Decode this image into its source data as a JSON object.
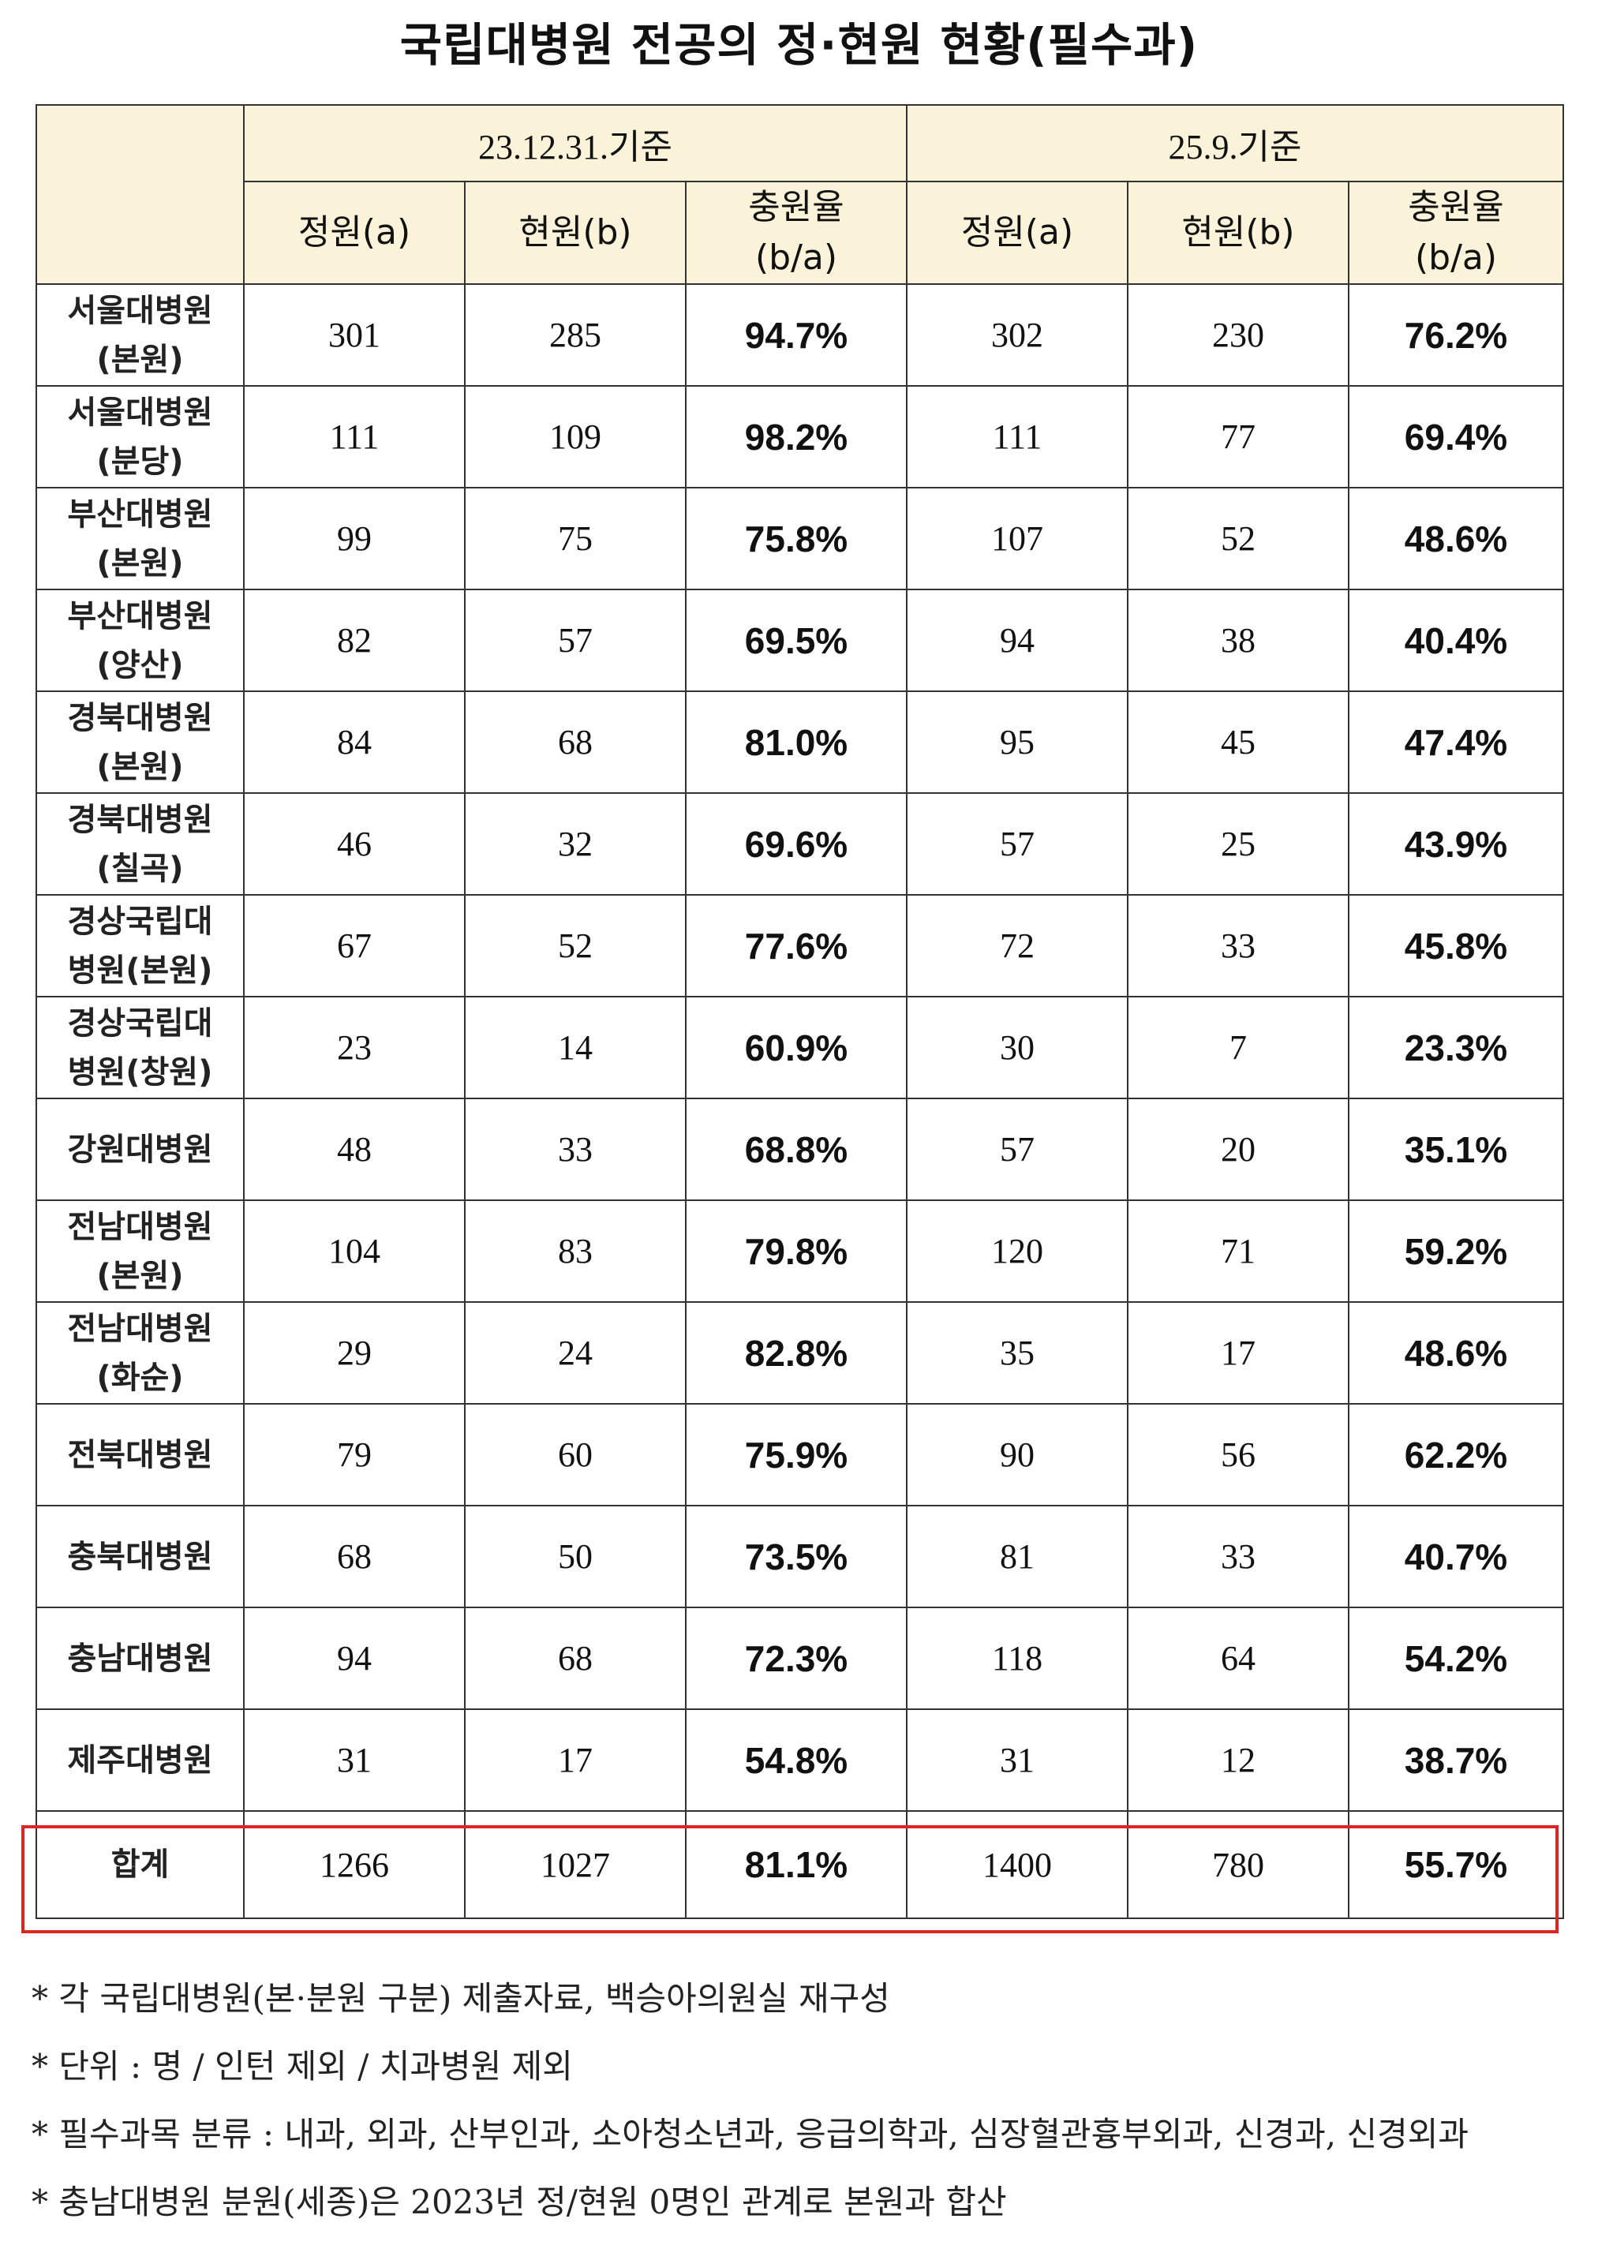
{
  "title": "국립대병원 전공의 정·현원 현황(필수과)",
  "table": {
    "periods": [
      "23.12.31.기준",
      "25.9.기준"
    ],
    "sub_headers": [
      "정원(a)",
      "현원(b)",
      "충원율\n(b/a)"
    ],
    "rows": [
      {
        "name": "서울대병원\n(본원)",
        "values": [
          "301",
          "285",
          "94.7%",
          "302",
          "230",
          "76.2%"
        ]
      },
      {
        "name": "서울대병원\n(분당)",
        "values": [
          "111",
          "109",
          "98.2%",
          "111",
          "77",
          "69.4%"
        ]
      },
      {
        "name": "부산대병원\n(본원)",
        "values": [
          "99",
          "75",
          "75.8%",
          "107",
          "52",
          "48.6%"
        ]
      },
      {
        "name": "부산대병원\n(양산)",
        "values": [
          "82",
          "57",
          "69.5%",
          "94",
          "38",
          "40.4%"
        ]
      },
      {
        "name": "경북대병원\n(본원)",
        "values": [
          "84",
          "68",
          "81.0%",
          "95",
          "45",
          "47.4%"
        ]
      },
      {
        "name": "경북대병원\n(칠곡)",
        "values": [
          "46",
          "32",
          "69.6%",
          "57",
          "25",
          "43.9%"
        ]
      },
      {
        "name": "경상국립대\n병원(본원)",
        "values": [
          "67",
          "52",
          "77.6%",
          "72",
          "33",
          "45.8%"
        ]
      },
      {
        "name": "경상국립대\n병원(창원)",
        "values": [
          "23",
          "14",
          "60.9%",
          "30",
          "7",
          "23.3%"
        ]
      },
      {
        "name": "강원대병원",
        "values": [
          "48",
          "33",
          "68.8%",
          "57",
          "20",
          "35.1%"
        ]
      },
      {
        "name": "전남대병원\n(본원)",
        "values": [
          "104",
          "83",
          "79.8%",
          "120",
          "71",
          "59.2%"
        ]
      },
      {
        "name": "전남대병원\n(화순)",
        "values": [
          "29",
          "24",
          "82.8%",
          "35",
          "17",
          "48.6%"
        ]
      },
      {
        "name": "전북대병원",
        "values": [
          "79",
          "60",
          "75.9%",
          "90",
          "56",
          "62.2%"
        ]
      },
      {
        "name": "충북대병원",
        "values": [
          "68",
          "50",
          "73.5%",
          "81",
          "33",
          "40.7%"
        ]
      },
      {
        "name": "충남대병원",
        "values": [
          "94",
          "68",
          "72.3%",
          "118",
          "64",
          "54.2%"
        ]
      },
      {
        "name": "제주대병원",
        "values": [
          "31",
          "17",
          "54.8%",
          "31",
          "12",
          "38.7%"
        ]
      }
    ],
    "total": {
      "name": "합계",
      "values": [
        "1266",
        "1027",
        "81.1%",
        "1400",
        "780",
        "55.7%"
      ]
    }
  },
  "notes": [
    "*  각  국립대병원(본·분원  구분)  제출자료,  백승아의원실  재구성",
    "*  단위  :  명  /  인턴  제외  /  치과병원  제외",
    "*  필수과목  분류  :  내과,  외과,  산부인과,  소아청소년과,  응급의학과,  심장혈관흉부외과,  신경과,  신경외과",
    "*  충남대병원  분원(세종)은  2023년  정/현원  0명인  관계로  본원과  합산"
  ],
  "colors": {
    "header_bg": "#fbf3d9",
    "total_outline": "#e02424"
  }
}
